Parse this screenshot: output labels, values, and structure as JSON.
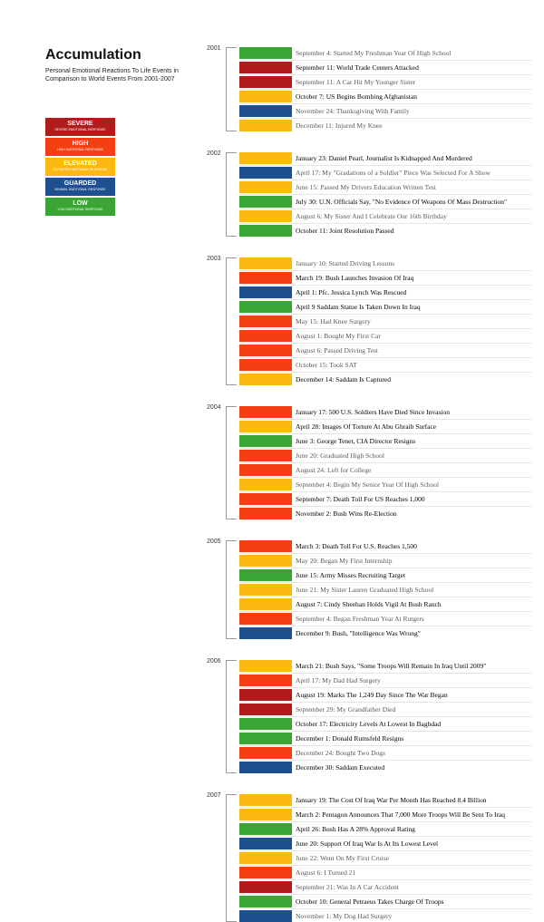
{
  "title": "Accumulation",
  "subtitle": "Personal Emotional Reactions To Life Events in Comparison to World Events From 2001-2007",
  "colors": {
    "severe": "#b01c1c",
    "high": "#f43f12",
    "elevated": "#fdb913",
    "guarded": "#1d4f91",
    "low": "#3aa535"
  },
  "legend": [
    {
      "key": "severe",
      "label": "SEVERE",
      "sub": "SEVERE EMOTIONAL RESPONSE"
    },
    {
      "key": "high",
      "label": "HIGH",
      "sub": "HIGH EMOTIONAL RESPONSE"
    },
    {
      "key": "elevated",
      "label": "ELEVATED",
      "sub": "ELEVATED EMOTIONAL RESPONSE"
    },
    {
      "key": "guarded",
      "label": "GUARDED",
      "sub": "MINIMAL EMOTIONAL RESPONSE"
    },
    {
      "key": "low",
      "label": "LOW",
      "sub": "LOW EMOTIONAL RESPONSE"
    }
  ],
  "chart_data": {
    "type": "table",
    "title": "Accumulation",
    "years": [
      {
        "year": "2001",
        "events": [
          {
            "text": "September 4: Started My Freshman Year Of High School",
            "level": "low",
            "type": "personal"
          },
          {
            "text": "September 11: World Trade Centers Attacked",
            "level": "severe",
            "type": "world"
          },
          {
            "text": "September 11: A Car Hit My Younger Sister",
            "level": "severe",
            "type": "personal"
          },
          {
            "text": "October 7: US Begins Bombing Afghanistan",
            "level": "elevated",
            "type": "world"
          },
          {
            "text": "November 24: Thanksgiving With Family",
            "level": "guarded",
            "type": "personal"
          },
          {
            "text": "December 11: Injured My Knee",
            "level": "elevated",
            "type": "personal"
          }
        ]
      },
      {
        "year": "2002",
        "events": [
          {
            "text": "January 23: Daniel Pearl, Journalist Is Kidnapped And Murdered",
            "level": "elevated",
            "type": "world"
          },
          {
            "text": "April 17: My \"Gradations of a Soldier\" Piece Was Selected For A Show",
            "level": "guarded",
            "type": "personal"
          },
          {
            "text": "June 15: Passed My Drivers Education Written Test",
            "level": "elevated",
            "type": "personal"
          },
          {
            "text": "July 30: U.N. Officials Say, \"No Evidence Of Weapons Of Mass Destruction\"",
            "level": "low",
            "type": "world"
          },
          {
            "text": "August 6: My Sister And I Celebrate Our 16th Birthday",
            "level": "elevated",
            "type": "personal"
          },
          {
            "text": "October 11: Joint Resolution Passed",
            "level": "low",
            "type": "world"
          }
        ]
      },
      {
        "year": "2003",
        "events": [
          {
            "text": "January 10: Started Driving Lessons",
            "level": "elevated",
            "type": "personal"
          },
          {
            "text": "March 19: Bush Launches Invasion Of Iraq",
            "level": "high",
            "type": "world"
          },
          {
            "text": "April 1: Pfc. Jessica Lynch Was Rescued",
            "level": "guarded",
            "type": "world"
          },
          {
            "text": "April 9 Saddam Statue Is Taken Down In Iraq",
            "level": "low",
            "type": "world"
          },
          {
            "text": "May 15: Had Knee Surgery",
            "level": "high",
            "type": "personal"
          },
          {
            "text": "August 1: Bought My First Car",
            "level": "high",
            "type": "personal"
          },
          {
            "text": "August 6: Passed Driving Test",
            "level": "high",
            "type": "personal"
          },
          {
            "text": "October 15: Took SAT",
            "level": "high",
            "type": "personal"
          },
          {
            "text": "December 14: Saddam Is Captured",
            "level": "elevated",
            "type": "world"
          }
        ]
      },
      {
        "year": "2004",
        "events": [
          {
            "text": "January 17: 500 U.S. Soldiers Have Died Since Invasion",
            "level": "high",
            "type": "world"
          },
          {
            "text": "April 28: Images Of Torture At Abu Ghraib Surface",
            "level": "elevated",
            "type": "world"
          },
          {
            "text": "June 3: George Tenet, CIA Director Resigns",
            "level": "low",
            "type": "world"
          },
          {
            "text": "June 20: Graduated High School",
            "level": "high",
            "type": "personal"
          },
          {
            "text": "August 24: Left for College",
            "level": "high",
            "type": "personal"
          },
          {
            "text": "September 4: Begin My Senior Year Of High School",
            "level": "elevated",
            "type": "personal"
          },
          {
            "text": "September 7: Death Toll For US Reaches 1,000",
            "level": "high",
            "type": "world"
          },
          {
            "text": "November 2: Bush Wins Re-Election",
            "level": "high",
            "type": "world"
          }
        ]
      },
      {
        "year": "2005",
        "events": [
          {
            "text": "March 3: Death Toll For U.S. Reaches 1,500",
            "level": "high",
            "type": "world"
          },
          {
            "text": "May 20: Began My First Internship",
            "level": "elevated",
            "type": "personal"
          },
          {
            "text": "June 15: Army Misses Recruiting Target",
            "level": "low",
            "type": "world"
          },
          {
            "text": "June 21: My Sister Lauren Graduated High School",
            "level": "elevated",
            "type": "personal"
          },
          {
            "text": "August 7: Cindy Sheehan Holds Vigil At Bush Ranch",
            "level": "elevated",
            "type": "world"
          },
          {
            "text": "September 4: Began Freshman Year At Rutgers",
            "level": "high",
            "type": "personal"
          },
          {
            "text": "December 9: Bush, \"Intelligence Was Wrong\"",
            "level": "guarded",
            "type": "world"
          }
        ]
      },
      {
        "year": "2006",
        "events": [
          {
            "text": "March 21: Bush Says, \"Some Troops Will Remain In Iraq Until 2009\"",
            "level": "elevated",
            "type": "world"
          },
          {
            "text": "April 17: My Dad Had Surgery",
            "level": "high",
            "type": "personal"
          },
          {
            "text": "August 19: Marks The 1,249 Day Since The War Began",
            "level": "severe",
            "type": "world"
          },
          {
            "text": "September 29: My Grandfather Died",
            "level": "severe",
            "type": "personal"
          },
          {
            "text": "October 17: Electricity Levels At Lowest In Baghdad",
            "level": "low",
            "type": "world"
          },
          {
            "text": "December 1: Donald Rumsfeld Resigns",
            "level": "low",
            "type": "world"
          },
          {
            "text": "December 24: Bought Two Dogs",
            "level": "high",
            "type": "personal"
          },
          {
            "text": "December 30: Saddam Executed",
            "level": "guarded",
            "type": "world"
          }
        ]
      },
      {
        "year": "2007",
        "events": [
          {
            "text": "January 19: The Cost Of Iraq War Per Month Has Reached 8.4 Billion",
            "level": "elevated",
            "type": "world"
          },
          {
            "text": "March 2: Pentagon Announces That 7,000 More Troops Will Be Sent To Iraq",
            "level": "elevated",
            "type": "world"
          },
          {
            "text": "April 26: Bush Has A 28% Approval Rating",
            "level": "low",
            "type": "world"
          },
          {
            "text": "June 20: Support Of Iraq War Is At Its Lowest Level",
            "level": "guarded",
            "type": "world"
          },
          {
            "text": "June 22: Went On My First Cruise",
            "level": "elevated",
            "type": "personal"
          },
          {
            "text": "August 6: I Turned 21",
            "level": "high",
            "type": "personal"
          },
          {
            "text": "September 21: Was In A Car Accident",
            "level": "severe",
            "type": "personal"
          },
          {
            "text": "October 10: General Petraeus Takes Charge Of Troops",
            "level": "low",
            "type": "world"
          },
          {
            "text": "November 1: My Dog Had Surgery",
            "level": "guarded",
            "type": "personal"
          }
        ]
      }
    ]
  }
}
